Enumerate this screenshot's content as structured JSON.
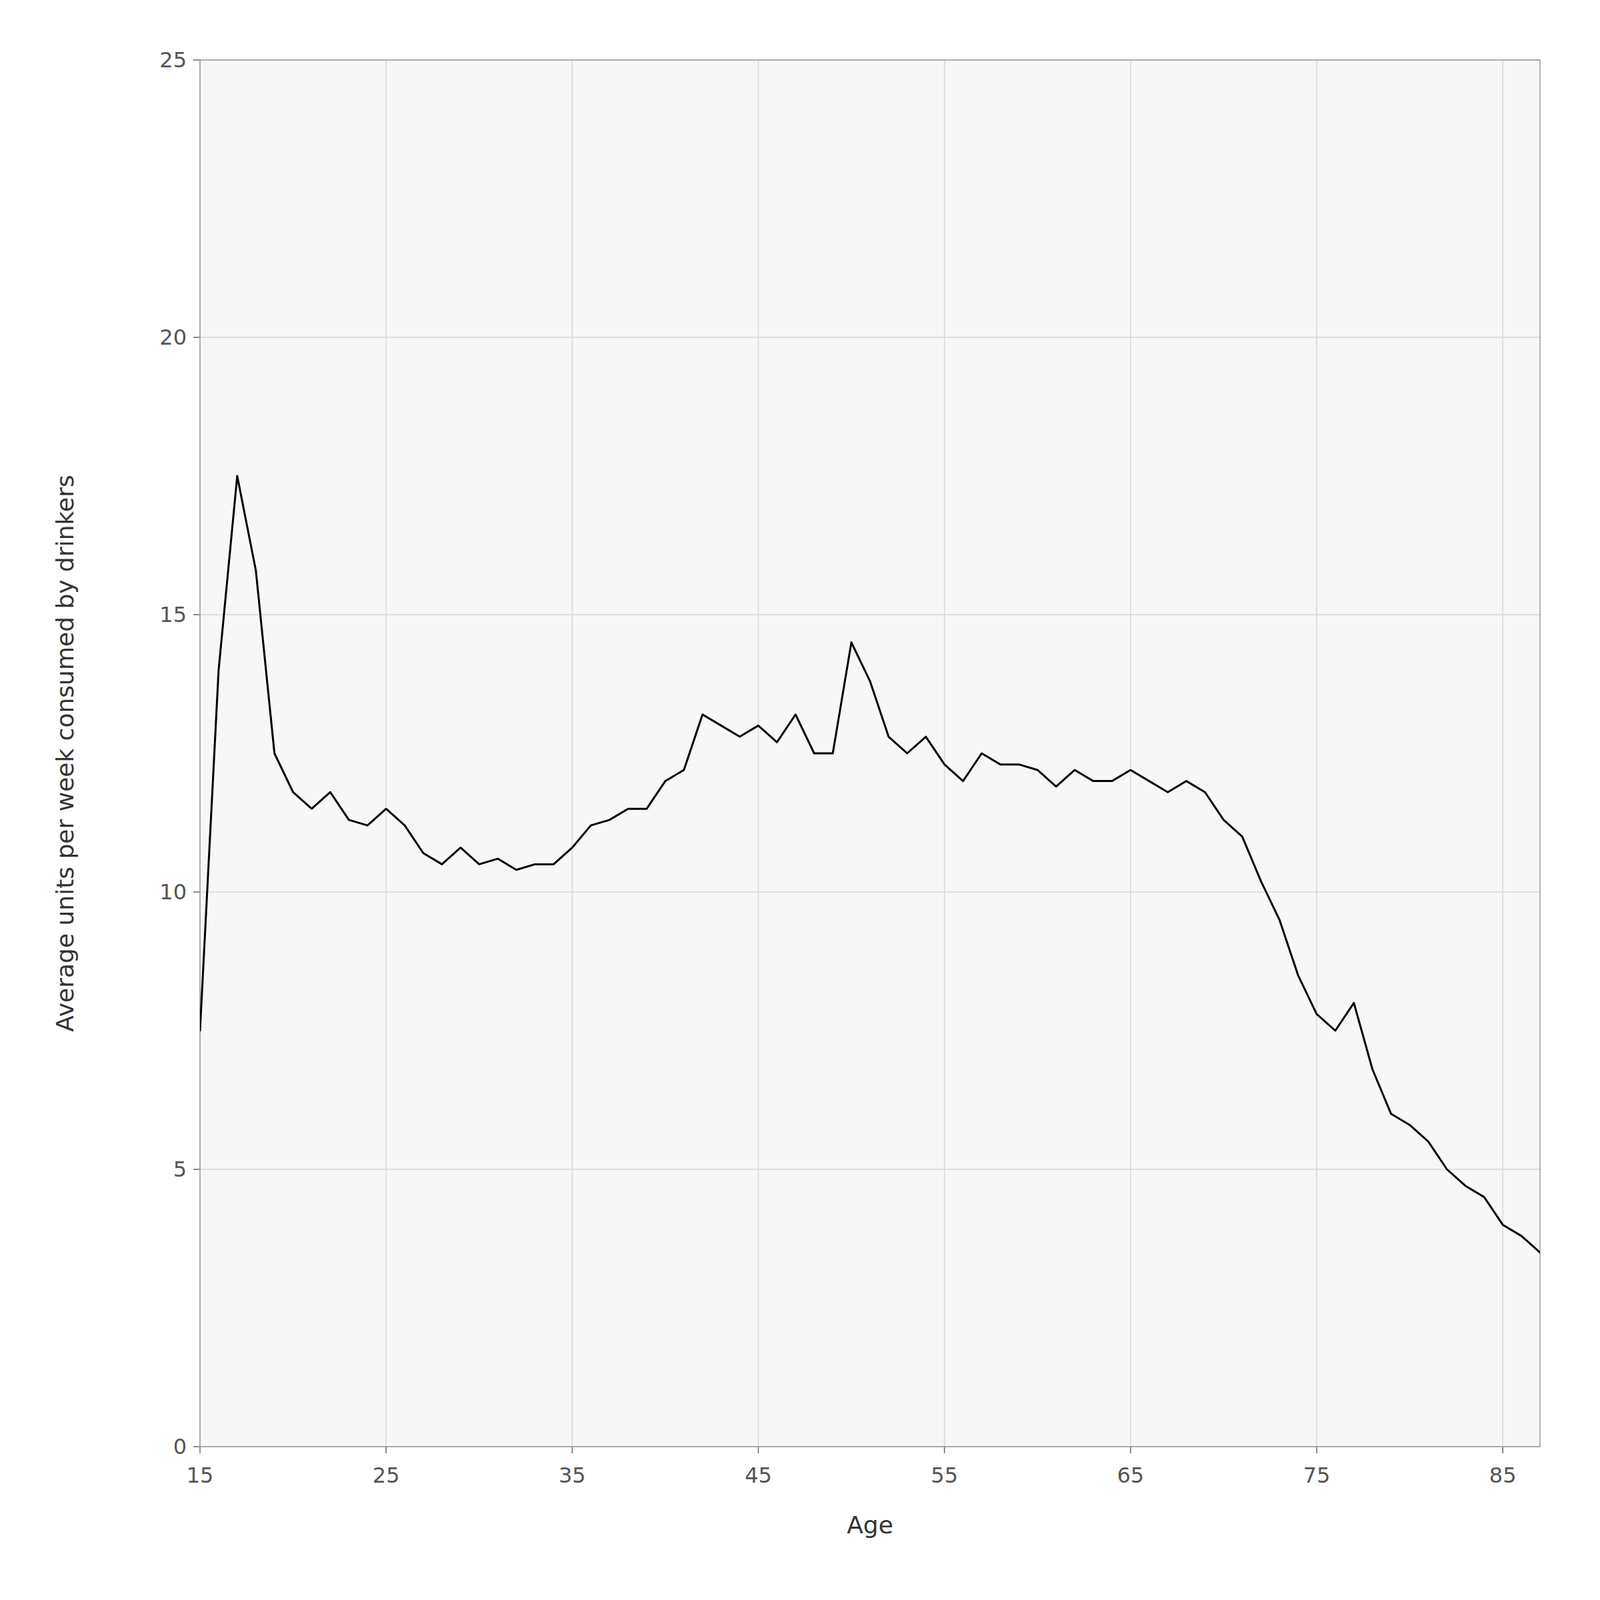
{
  "chart_data": {
    "type": "line",
    "x": [
      15,
      16,
      17,
      18,
      19,
      20,
      21,
      22,
      23,
      24,
      25,
      26,
      27,
      28,
      29,
      30,
      31,
      32,
      33,
      34,
      35,
      36,
      37,
      38,
      39,
      40,
      41,
      42,
      43,
      44,
      45,
      46,
      47,
      48,
      49,
      50,
      51,
      52,
      53,
      54,
      55,
      56,
      57,
      58,
      59,
      60,
      61,
      62,
      63,
      64,
      65,
      66,
      67,
      68,
      69,
      70,
      71,
      72,
      73,
      74,
      75,
      76,
      77,
      78,
      79,
      80,
      81,
      82,
      83,
      84,
      85,
      86,
      87
    ],
    "values": [
      7.5,
      14.0,
      17.5,
      15.8,
      12.5,
      11.8,
      11.5,
      11.8,
      11.3,
      11.2,
      11.5,
      11.2,
      10.7,
      10.5,
      10.8,
      10.5,
      10.6,
      10.4,
      10.5,
      10.5,
      10.8,
      11.2,
      11.3,
      11.5,
      11.5,
      12.0,
      12.2,
      13.2,
      13.0,
      12.8,
      13.0,
      12.7,
      13.2,
      12.5,
      12.5,
      14.5,
      13.8,
      12.8,
      12.5,
      12.8,
      12.3,
      12.0,
      12.5,
      12.3,
      12.3,
      12.2,
      11.9,
      12.2,
      12.0,
      12.0,
      12.2,
      12.0,
      11.8,
      12.0,
      11.8,
      11.3,
      11.0,
      10.2,
      9.5,
      8.5,
      7.8,
      7.5,
      8.0,
      6.8,
      6.0,
      5.8,
      5.5,
      5.0,
      4.7,
      4.5,
      4.0,
      3.8,
      3.5
    ],
    "xlabel": "Age",
    "ylabel": "Average units per week consumed by drinkers",
    "xlim": [
      15,
      87
    ],
    "ylim": [
      0,
      25
    ],
    "xticks": [
      15,
      25,
      35,
      45,
      55,
      65,
      75,
      85
    ],
    "yticks": [
      0,
      5,
      10,
      15,
      20,
      25
    ],
    "color": "#000000",
    "grid": true
  }
}
